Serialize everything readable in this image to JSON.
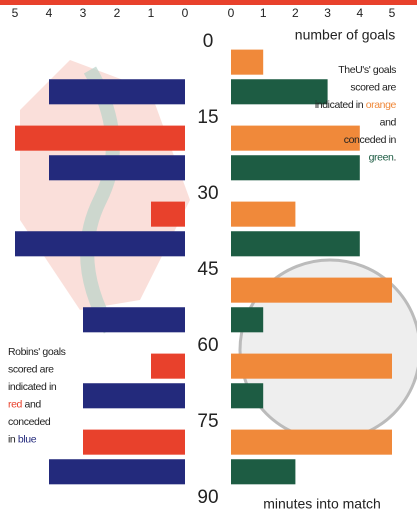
{
  "chart_data": {
    "type": "bar",
    "orientation": "horizontal",
    "xlim": [
      5,
      0
    ],
    "xticks": [
      5,
      4,
      3,
      2,
      1,
      0
    ],
    "x2lim": [
      0,
      5
    ],
    "x2ticks": [
      0,
      1,
      2,
      3,
      4,
      5
    ],
    "x2label": "number of goals",
    "ylim": [
      0,
      90
    ],
    "yticks": [
      0,
      15,
      30,
      45,
      60,
      75,
      90
    ],
    "ylabel": "minutes into match",
    "series": [
      {
        "name": "Robins' goals scored",
        "color": "#e8412c",
        "values": [
          0,
          5,
          1,
          0,
          1,
          3
        ]
      },
      {
        "name": "Robins' goals conceded",
        "color": "#232a7c",
        "values": [
          4,
          4,
          5,
          3,
          3,
          4
        ]
      },
      {
        "name": "The U's' goals scored",
        "color": "#f0893a",
        "axis": "x2",
        "values": [
          1,
          4,
          2,
          5,
          5,
          5
        ]
      },
      {
        "name": "The U's' goals conceded",
        "color": "#1d5c43",
        "axis": "x2",
        "values": [
          3,
          4,
          4,
          1,
          1,
          2
        ]
      }
    ],
    "annotations": [
      {
        "lines": [
          [
            "TheU's' goals"
          ],
          [
            "scored are"
          ],
          [
            "indicated in ",
            "orange"
          ],
          [
            "and"
          ],
          [
            "conceded in"
          ],
          [
            "green",
            "."
          ]
        ]
      },
      {
        "lines": [
          [
            "Robins' goals"
          ],
          [
            "scored are"
          ],
          [
            "indicated in"
          ],
          [
            "red",
            " and"
          ],
          [
            "conceded"
          ],
          [
            "in ",
            "blue"
          ]
        ]
      }
    ]
  }
}
